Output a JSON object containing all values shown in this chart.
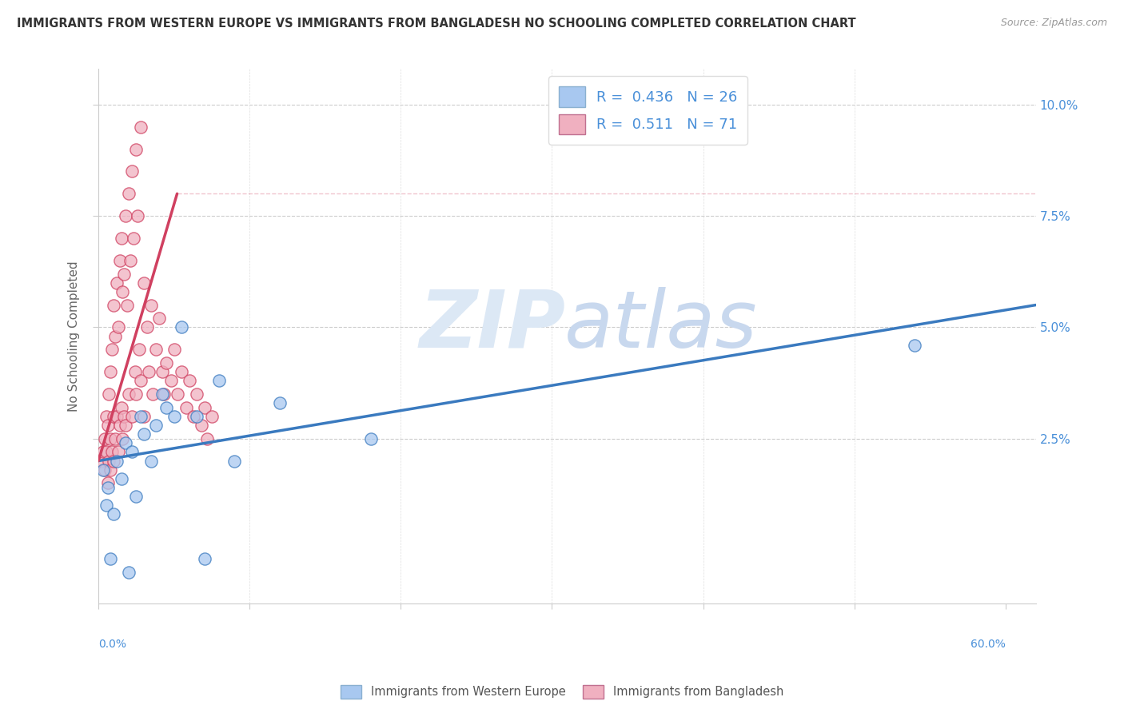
{
  "title": "IMMIGRANTS FROM WESTERN EUROPE VS IMMIGRANTS FROM BANGLADESH NO SCHOOLING COMPLETED CORRELATION CHART",
  "source": "Source: ZipAtlas.com",
  "ylabel": "No Schooling Completed",
  "ytick_vals": [
    0.025,
    0.05,
    0.075,
    0.1
  ],
  "ytick_labels": [
    "2.5%",
    "5.0%",
    "7.5%",
    "10.0%"
  ],
  "xlim": [
    0.0,
    0.62
  ],
  "ylim": [
    -0.012,
    0.108
  ],
  "legend_blue_label": "Immigrants from Western Europe",
  "legend_pink_label": "Immigrants from Bangladesh",
  "R_blue": 0.436,
  "N_blue": 26,
  "R_pink": 0.511,
  "N_pink": 71,
  "blue_color": "#a8c8f0",
  "blue_line_color": "#3a7abf",
  "pink_color": "#f0b0c0",
  "pink_line_color": "#d04060",
  "blue_scatter_x": [
    0.003,
    0.005,
    0.006,
    0.008,
    0.01,
    0.012,
    0.015,
    0.018,
    0.02,
    0.022,
    0.025,
    0.028,
    0.03,
    0.035,
    0.038,
    0.042,
    0.045,
    0.05,
    0.055,
    0.065,
    0.07,
    0.08,
    0.09,
    0.12,
    0.18,
    0.54
  ],
  "blue_scatter_y": [
    0.018,
    0.01,
    0.014,
    -0.002,
    0.008,
    0.02,
    0.016,
    0.024,
    -0.005,
    0.022,
    0.012,
    0.03,
    0.026,
    0.02,
    0.028,
    0.035,
    0.032,
    0.03,
    0.05,
    0.03,
    -0.002,
    0.038,
    0.02,
    0.033,
    0.025,
    0.046
  ],
  "pink_scatter_x": [
    0.002,
    0.003,
    0.004,
    0.004,
    0.005,
    0.005,
    0.006,
    0.006,
    0.007,
    0.007,
    0.008,
    0.008,
    0.008,
    0.009,
    0.009,
    0.01,
    0.01,
    0.01,
    0.011,
    0.011,
    0.012,
    0.012,
    0.013,
    0.013,
    0.014,
    0.014,
    0.015,
    0.015,
    0.016,
    0.016,
    0.017,
    0.017,
    0.018,
    0.018,
    0.019,
    0.02,
    0.02,
    0.021,
    0.022,
    0.022,
    0.023,
    0.024,
    0.025,
    0.025,
    0.026,
    0.027,
    0.028,
    0.028,
    0.03,
    0.03,
    0.032,
    0.033,
    0.035,
    0.036,
    0.038,
    0.04,
    0.042,
    0.043,
    0.045,
    0.048,
    0.05,
    0.052,
    0.055,
    0.058,
    0.06,
    0.063,
    0.065,
    0.068,
    0.07,
    0.072,
    0.075
  ],
  "pink_scatter_y": [
    0.02,
    0.022,
    0.025,
    0.018,
    0.03,
    0.022,
    0.028,
    0.015,
    0.035,
    0.02,
    0.04,
    0.025,
    0.018,
    0.045,
    0.022,
    0.055,
    0.03,
    0.02,
    0.048,
    0.025,
    0.06,
    0.03,
    0.05,
    0.022,
    0.065,
    0.028,
    0.07,
    0.032,
    0.058,
    0.025,
    0.062,
    0.03,
    0.075,
    0.028,
    0.055,
    0.08,
    0.035,
    0.065,
    0.085,
    0.03,
    0.07,
    0.04,
    0.09,
    0.035,
    0.075,
    0.045,
    0.095,
    0.038,
    0.06,
    0.03,
    0.05,
    0.04,
    0.055,
    0.035,
    0.045,
    0.052,
    0.04,
    0.035,
    0.042,
    0.038,
    0.045,
    0.035,
    0.04,
    0.032,
    0.038,
    0.03,
    0.035,
    0.028,
    0.032,
    0.025,
    0.03
  ],
  "blue_line_x": [
    0.0,
    0.62
  ],
  "blue_line_y": [
    0.02,
    0.055
  ],
  "pink_line_x": [
    0.0,
    0.052
  ],
  "pink_line_y": [
    0.02,
    0.08
  ],
  "watermark_zip_color": "#dce8f5",
  "watermark_atlas_color": "#c8d8ee"
}
